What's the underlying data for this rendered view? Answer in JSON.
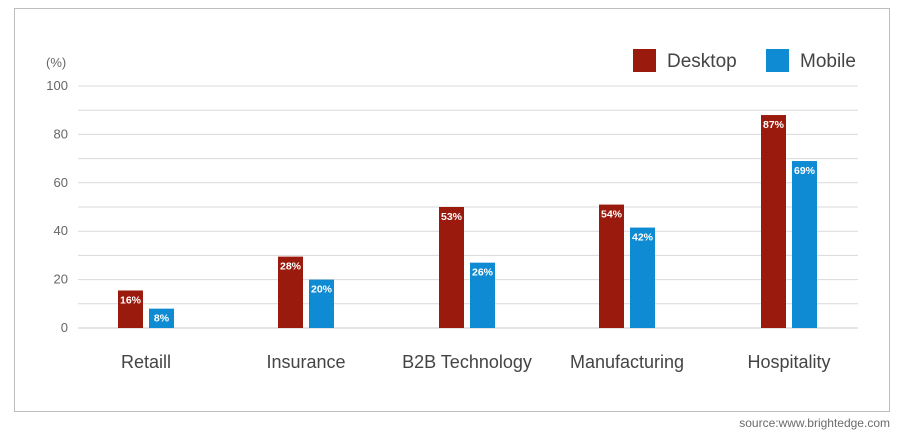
{
  "chart_data": {
    "type": "bar",
    "unit_label": "(%)",
    "categories": [
      "Retaill",
      "Insurance",
      "B2B Technology",
      "Manufacturing",
      "Hospitality"
    ],
    "series": [
      {
        "name": "Desktop",
        "values": [
          16,
          28,
          53,
          54,
          87
        ],
        "labels": [
          "16%",
          "28%",
          "53%",
          "54%",
          "87%"
        ]
      },
      {
        "name": "Mobile",
        "values": [
          8,
          20,
          26,
          42,
          69
        ],
        "labels": [
          "8%",
          "20%",
          "26%",
          "42%",
          "69%"
        ]
      }
    ],
    "bar_heights_shown": {
      "Desktop": [
        15.5,
        29.5,
        50,
        51,
        88
      ],
      "Mobile": [
        8,
        20,
        27,
        41.5,
        69
      ]
    },
    "y_ticks": [
      "0",
      "20",
      "40",
      "60",
      "80",
      "100"
    ],
    "ylim": [
      0,
      100
    ],
    "grid": true,
    "legend_position": "top-right"
  },
  "colors": {
    "Desktop": "#9b1a0e",
    "Mobile": "#0f8bd3",
    "grid": "#d9d9d9",
    "text": "#555555"
  },
  "source": "source:www.brightedge.com"
}
